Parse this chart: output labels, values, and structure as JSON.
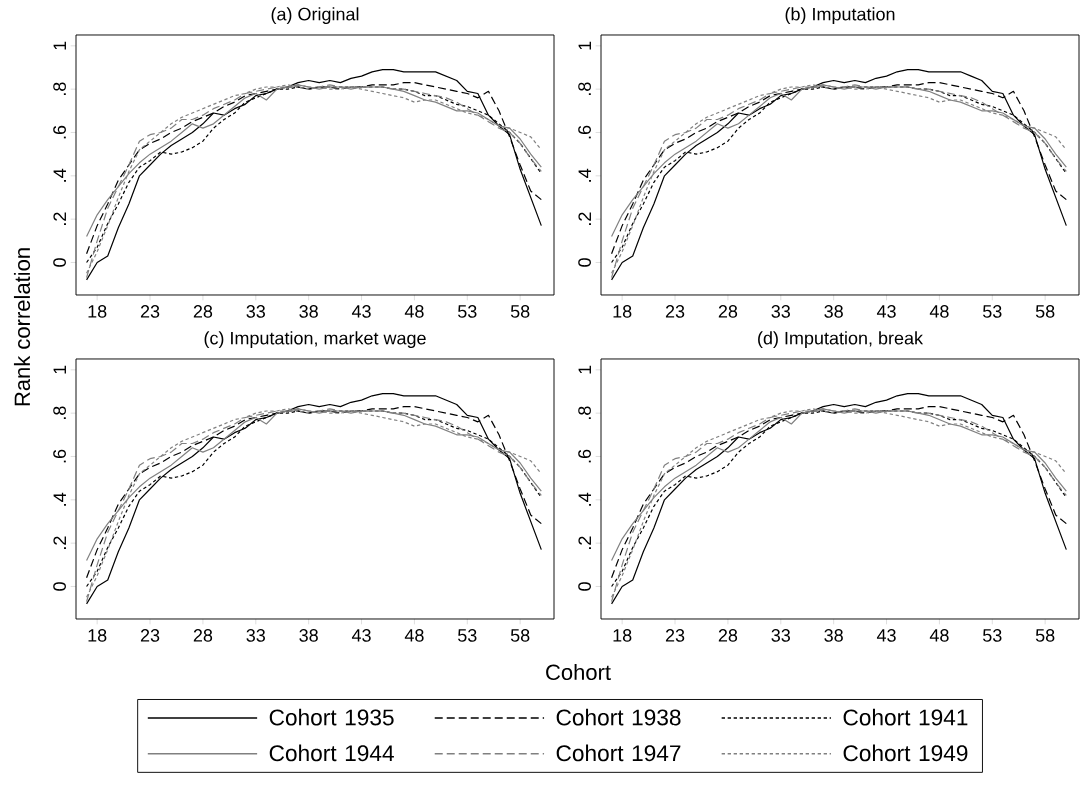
{
  "chart_data": [
    {
      "type": "line",
      "title": "(a) Original",
      "xlabel": "Cohort",
      "ylabel": "Rank correlation",
      "legend": "bottom",
      "marker": "none",
      "xlim": [
        16,
        61.2
      ],
      "ylim": [
        -0.15,
        1.05
      ],
      "xticks": [
        18,
        23,
        28,
        33,
        38,
        43,
        48,
        53,
        58
      ],
      "yticks": [
        0,
        {
          "value": 0.2,
          "label": ".2"
        },
        {
          "value": 0.4,
          "label": ".4"
        },
        {
          "value": 0.6,
          "label": ".6"
        },
        {
          "value": 0.8,
          "label": ".8"
        },
        1
      ],
      "x": [
        17,
        18,
        19,
        20,
        21,
        22,
        23,
        24,
        25,
        26,
        27,
        28,
        29,
        30,
        31,
        32,
        33,
        34,
        35,
        36,
        37,
        38,
        39,
        40,
        41,
        42,
        43,
        44,
        45,
        46,
        47,
        48,
        49,
        50,
        51,
        52,
        53,
        54,
        55,
        56,
        57,
        58,
        59,
        60
      ],
      "series": [
        {
          "name": "Cohort 1935",
          "color": "#000000",
          "line_style": "solid",
          "values": [
            -0.08,
            0.0,
            0.03,
            0.16,
            0.27,
            0.4,
            0.45,
            0.5,
            0.54,
            0.57,
            0.6,
            0.64,
            0.69,
            0.68,
            0.71,
            0.73,
            0.77,
            0.78,
            0.8,
            0.81,
            0.83,
            0.84,
            0.83,
            0.84,
            0.83,
            0.85,
            0.86,
            0.88,
            0.89,
            0.89,
            0.88,
            0.88,
            0.88,
            0.88,
            0.86,
            0.84,
            0.79,
            0.78,
            0.68,
            0.63,
            0.59,
            0.43,
            0.3,
            0.17
          ]
        },
        {
          "name": "Cohort 1938",
          "color": "#000000",
          "line_style": "dashed",
          "values": [
            0.04,
            0.17,
            0.27,
            0.38,
            0.45,
            0.52,
            0.55,
            0.57,
            0.6,
            0.62,
            0.65,
            0.67,
            0.69,
            0.72,
            0.74,
            0.77,
            0.78,
            0.79,
            0.8,
            0.81,
            0.81,
            0.8,
            0.81,
            0.81,
            0.8,
            0.81,
            0.81,
            0.82,
            0.82,
            0.82,
            0.83,
            0.83,
            0.82,
            0.81,
            0.8,
            0.79,
            0.78,
            0.76,
            0.79,
            0.7,
            0.58,
            0.45,
            0.33,
            0.29
          ]
        },
        {
          "name": "Cohort 1941",
          "color": "#000000",
          "line_style": "dotted",
          "values": [
            0.0,
            0.07,
            0.18,
            0.27,
            0.37,
            0.44,
            0.47,
            0.51,
            0.5,
            0.51,
            0.53,
            0.56,
            0.62,
            0.66,
            0.69,
            0.74,
            0.76,
            0.78,
            0.8,
            0.8,
            0.81,
            0.8,
            0.81,
            0.81,
            0.81,
            0.81,
            0.81,
            0.81,
            0.81,
            0.8,
            0.8,
            0.79,
            0.77,
            0.77,
            0.75,
            0.73,
            0.72,
            0.7,
            0.68,
            0.64,
            0.6,
            0.55,
            0.48,
            0.41
          ]
        },
        {
          "name": "Cohort 1944",
          "color": "#808080",
          "line_style": "solid",
          "values": [
            0.12,
            0.22,
            0.29,
            0.35,
            0.41,
            0.46,
            0.5,
            0.53,
            0.56,
            0.6,
            0.64,
            0.62,
            0.64,
            0.68,
            0.72,
            0.76,
            0.78,
            0.75,
            0.8,
            0.81,
            0.82,
            0.81,
            0.8,
            0.81,
            0.81,
            0.8,
            0.81,
            0.81,
            0.81,
            0.8,
            0.79,
            0.77,
            0.75,
            0.74,
            0.72,
            0.7,
            0.7,
            0.69,
            0.66,
            0.63,
            0.62,
            0.57,
            0.5,
            0.44
          ]
        },
        {
          "name": "Cohort 1947",
          "color": "#808080",
          "line_style": "dashed",
          "values": [
            -0.07,
            0.1,
            0.25,
            0.35,
            0.45,
            0.56,
            0.59,
            0.6,
            0.62,
            0.66,
            0.66,
            0.68,
            0.71,
            0.73,
            0.75,
            0.78,
            0.79,
            0.8,
            0.81,
            0.81,
            0.82,
            0.81,
            0.81,
            0.82,
            0.81,
            0.81,
            0.81,
            0.81,
            0.81,
            0.8,
            0.8,
            0.79,
            0.78,
            0.77,
            0.76,
            0.74,
            0.71,
            0.68,
            0.65,
            0.62,
            0.6,
            0.55,
            0.48,
            0.42
          ]
        },
        {
          "name": "Cohort 1949",
          "color": "#808080",
          "line_style": "dotted",
          "values": [
            -0.05,
            0.05,
            0.17,
            0.3,
            0.42,
            0.52,
            0.56,
            0.6,
            0.64,
            0.67,
            0.69,
            0.71,
            0.73,
            0.75,
            0.77,
            0.78,
            0.8,
            0.81,
            0.81,
            0.82,
            0.81,
            0.8,
            0.81,
            0.8,
            0.8,
            0.81,
            0.8,
            0.79,
            0.78,
            0.77,
            0.76,
            0.74,
            0.75,
            0.75,
            0.73,
            0.71,
            0.69,
            0.68,
            0.66,
            0.63,
            0.62,
            0.6,
            0.58,
            0.52
          ]
        }
      ]
    },
    {
      "type": "line",
      "title": "(b) Imputation",
      "marker": "none",
      "xlim": [
        16,
        61.2
      ],
      "ylim": [
        -0.15,
        1.05
      ],
      "xticks": [
        18,
        23,
        28,
        33,
        38,
        43,
        48,
        53,
        58
      ],
      "yticks": [
        0,
        {
          "value": 0.2,
          "label": ".2"
        },
        {
          "value": 0.4,
          "label": ".4"
        },
        {
          "value": 0.6,
          "label": ".6"
        },
        {
          "value": 0.8,
          "label": ".8"
        },
        1
      ],
      "x": [
        17,
        18,
        19,
        20,
        21,
        22,
        23,
        24,
        25,
        26,
        27,
        28,
        29,
        30,
        31,
        32,
        33,
        34,
        35,
        36,
        37,
        38,
        39,
        40,
        41,
        42,
        43,
        44,
        45,
        46,
        47,
        48,
        49,
        50,
        51,
        52,
        53,
        54,
        55,
        56,
        57,
        58,
        59,
        60
      ],
      "series": [
        {
          "color": "#000000",
          "line_style": "solid",
          "values": [
            -0.08,
            0.0,
            0.03,
            0.16,
            0.27,
            0.4,
            0.45,
            0.5,
            0.54,
            0.57,
            0.6,
            0.64,
            0.69,
            0.68,
            0.71,
            0.73,
            0.77,
            0.78,
            0.8,
            0.81,
            0.83,
            0.84,
            0.83,
            0.84,
            0.83,
            0.85,
            0.86,
            0.88,
            0.89,
            0.89,
            0.88,
            0.88,
            0.88,
            0.88,
            0.86,
            0.84,
            0.79,
            0.78,
            0.68,
            0.63,
            0.59,
            0.43,
            0.3,
            0.17
          ]
        },
        {
          "color": "#000000",
          "line_style": "dashed",
          "values": [
            0.04,
            0.17,
            0.27,
            0.38,
            0.45,
            0.52,
            0.55,
            0.57,
            0.6,
            0.62,
            0.65,
            0.67,
            0.69,
            0.72,
            0.74,
            0.77,
            0.78,
            0.79,
            0.8,
            0.81,
            0.81,
            0.8,
            0.81,
            0.81,
            0.8,
            0.81,
            0.81,
            0.82,
            0.82,
            0.82,
            0.83,
            0.83,
            0.82,
            0.81,
            0.8,
            0.79,
            0.78,
            0.76,
            0.79,
            0.7,
            0.58,
            0.45,
            0.33,
            0.29
          ]
        },
        {
          "color": "#000000",
          "line_style": "dotted",
          "values": [
            0.0,
            0.07,
            0.18,
            0.27,
            0.37,
            0.44,
            0.47,
            0.51,
            0.5,
            0.51,
            0.53,
            0.56,
            0.62,
            0.66,
            0.69,
            0.74,
            0.76,
            0.78,
            0.8,
            0.8,
            0.81,
            0.8,
            0.81,
            0.81,
            0.81,
            0.81,
            0.81,
            0.81,
            0.81,
            0.8,
            0.8,
            0.79,
            0.77,
            0.77,
            0.75,
            0.73,
            0.72,
            0.7,
            0.68,
            0.64,
            0.6,
            0.55,
            0.48,
            0.41
          ]
        },
        {
          "color": "#808080",
          "line_style": "solid",
          "values": [
            0.12,
            0.22,
            0.29,
            0.35,
            0.41,
            0.46,
            0.5,
            0.53,
            0.56,
            0.6,
            0.64,
            0.62,
            0.64,
            0.68,
            0.72,
            0.76,
            0.78,
            0.75,
            0.8,
            0.81,
            0.82,
            0.81,
            0.8,
            0.81,
            0.81,
            0.8,
            0.81,
            0.81,
            0.81,
            0.8,
            0.79,
            0.77,
            0.75,
            0.74,
            0.72,
            0.7,
            0.7,
            0.69,
            0.66,
            0.63,
            0.62,
            0.57,
            0.5,
            0.44
          ]
        },
        {
          "color": "#808080",
          "line_style": "dashed",
          "values": [
            -0.07,
            0.1,
            0.25,
            0.35,
            0.45,
            0.56,
            0.59,
            0.6,
            0.62,
            0.66,
            0.66,
            0.68,
            0.71,
            0.73,
            0.75,
            0.78,
            0.79,
            0.8,
            0.81,
            0.81,
            0.82,
            0.81,
            0.81,
            0.82,
            0.81,
            0.81,
            0.81,
            0.81,
            0.81,
            0.8,
            0.8,
            0.79,
            0.78,
            0.77,
            0.76,
            0.74,
            0.71,
            0.68,
            0.65,
            0.62,
            0.6,
            0.55,
            0.48,
            0.42
          ]
        },
        {
          "color": "#808080",
          "line_style": "dotted",
          "values": [
            -0.05,
            0.05,
            0.17,
            0.3,
            0.42,
            0.52,
            0.56,
            0.6,
            0.64,
            0.67,
            0.69,
            0.71,
            0.73,
            0.75,
            0.77,
            0.78,
            0.8,
            0.81,
            0.81,
            0.82,
            0.81,
            0.8,
            0.81,
            0.8,
            0.8,
            0.81,
            0.8,
            0.79,
            0.78,
            0.77,
            0.76,
            0.74,
            0.75,
            0.75,
            0.73,
            0.71,
            0.69,
            0.68,
            0.66,
            0.63,
            0.62,
            0.6,
            0.58,
            0.52
          ]
        }
      ]
    },
    {
      "type": "line",
      "title": "(c) Imputation, market wage",
      "marker": "none",
      "xlim": [
        16,
        61.2
      ],
      "ylim": [
        -0.15,
        1.05
      ],
      "xticks": [
        18,
        23,
        28,
        33,
        38,
        43,
        48,
        53,
        58
      ],
      "yticks": [
        0,
        {
          "value": 0.2,
          "label": ".2"
        },
        {
          "value": 0.4,
          "label": ".4"
        },
        {
          "value": 0.6,
          "label": ".6"
        },
        {
          "value": 0.8,
          "label": ".8"
        },
        1
      ],
      "x": [
        17,
        18,
        19,
        20,
        21,
        22,
        23,
        24,
        25,
        26,
        27,
        28,
        29,
        30,
        31,
        32,
        33,
        34,
        35,
        36,
        37,
        38,
        39,
        40,
        41,
        42,
        43,
        44,
        45,
        46,
        47,
        48,
        49,
        50,
        51,
        52,
        53,
        54,
        55,
        56,
        57,
        58,
        59,
        60
      ],
      "series": [
        {
          "color": "#000000",
          "line_style": "solid",
          "values": [
            -0.08,
            0.0,
            0.03,
            0.16,
            0.27,
            0.4,
            0.45,
            0.5,
            0.54,
            0.57,
            0.6,
            0.64,
            0.69,
            0.68,
            0.71,
            0.73,
            0.77,
            0.78,
            0.8,
            0.81,
            0.83,
            0.84,
            0.83,
            0.84,
            0.83,
            0.85,
            0.86,
            0.88,
            0.89,
            0.89,
            0.88,
            0.88,
            0.88,
            0.88,
            0.86,
            0.84,
            0.79,
            0.78,
            0.68,
            0.63,
            0.59,
            0.43,
            0.3,
            0.17
          ]
        },
        {
          "color": "#000000",
          "line_style": "dashed",
          "values": [
            0.04,
            0.17,
            0.27,
            0.38,
            0.45,
            0.52,
            0.55,
            0.57,
            0.6,
            0.62,
            0.65,
            0.67,
            0.69,
            0.72,
            0.74,
            0.77,
            0.78,
            0.79,
            0.8,
            0.81,
            0.81,
            0.8,
            0.81,
            0.81,
            0.8,
            0.81,
            0.81,
            0.82,
            0.82,
            0.82,
            0.83,
            0.83,
            0.82,
            0.81,
            0.8,
            0.79,
            0.78,
            0.76,
            0.79,
            0.7,
            0.58,
            0.45,
            0.33,
            0.29
          ]
        },
        {
          "color": "#000000",
          "line_style": "dotted",
          "values": [
            0.0,
            0.07,
            0.18,
            0.27,
            0.37,
            0.44,
            0.47,
            0.51,
            0.5,
            0.51,
            0.53,
            0.56,
            0.62,
            0.66,
            0.69,
            0.74,
            0.76,
            0.78,
            0.8,
            0.8,
            0.81,
            0.8,
            0.81,
            0.81,
            0.81,
            0.81,
            0.81,
            0.81,
            0.81,
            0.8,
            0.8,
            0.79,
            0.77,
            0.77,
            0.75,
            0.73,
            0.72,
            0.7,
            0.68,
            0.64,
            0.6,
            0.55,
            0.48,
            0.41
          ]
        },
        {
          "color": "#808080",
          "line_style": "solid",
          "values": [
            0.12,
            0.22,
            0.29,
            0.35,
            0.41,
            0.46,
            0.5,
            0.53,
            0.56,
            0.6,
            0.64,
            0.62,
            0.64,
            0.68,
            0.72,
            0.76,
            0.78,
            0.75,
            0.8,
            0.81,
            0.82,
            0.81,
            0.8,
            0.81,
            0.81,
            0.8,
            0.81,
            0.81,
            0.81,
            0.8,
            0.79,
            0.77,
            0.75,
            0.74,
            0.72,
            0.7,
            0.7,
            0.69,
            0.66,
            0.63,
            0.62,
            0.57,
            0.5,
            0.44
          ]
        },
        {
          "color": "#808080",
          "line_style": "dashed",
          "values": [
            -0.07,
            0.1,
            0.25,
            0.35,
            0.45,
            0.56,
            0.59,
            0.6,
            0.62,
            0.66,
            0.66,
            0.68,
            0.71,
            0.73,
            0.75,
            0.78,
            0.79,
            0.8,
            0.81,
            0.81,
            0.82,
            0.81,
            0.81,
            0.82,
            0.81,
            0.81,
            0.81,
            0.81,
            0.81,
            0.8,
            0.8,
            0.79,
            0.78,
            0.77,
            0.76,
            0.74,
            0.71,
            0.68,
            0.65,
            0.62,
            0.6,
            0.55,
            0.48,
            0.42
          ]
        },
        {
          "color": "#808080",
          "line_style": "dotted",
          "values": [
            -0.05,
            0.05,
            0.17,
            0.3,
            0.42,
            0.52,
            0.56,
            0.6,
            0.64,
            0.67,
            0.69,
            0.71,
            0.73,
            0.75,
            0.77,
            0.78,
            0.8,
            0.81,
            0.81,
            0.82,
            0.81,
            0.8,
            0.81,
            0.8,
            0.8,
            0.81,
            0.8,
            0.79,
            0.78,
            0.77,
            0.76,
            0.74,
            0.75,
            0.75,
            0.73,
            0.71,
            0.69,
            0.68,
            0.66,
            0.63,
            0.62,
            0.6,
            0.58,
            0.52
          ]
        }
      ]
    },
    {
      "type": "line",
      "title": "(d) Imputation, break",
      "marker": "none",
      "xlim": [
        16,
        61.2
      ],
      "ylim": [
        -0.15,
        1.05
      ],
      "xticks": [
        18,
        23,
        28,
        33,
        38,
        43,
        48,
        53,
        58
      ],
      "yticks": [
        0,
        {
          "value": 0.2,
          "label": ".2"
        },
        {
          "value": 0.4,
          "label": ".4"
        },
        {
          "value": 0.6,
          "label": ".6"
        },
        {
          "value": 0.8,
          "label": ".8"
        },
        1
      ],
      "x": [
        17,
        18,
        19,
        20,
        21,
        22,
        23,
        24,
        25,
        26,
        27,
        28,
        29,
        30,
        31,
        32,
        33,
        34,
        35,
        36,
        37,
        38,
        39,
        40,
        41,
        42,
        43,
        44,
        45,
        46,
        47,
        48,
        49,
        50,
        51,
        52,
        53,
        54,
        55,
        56,
        57,
        58,
        59,
        60
      ],
      "series": [
        {
          "color": "#000000",
          "line_style": "solid",
          "values": [
            -0.08,
            0.0,
            0.03,
            0.16,
            0.27,
            0.4,
            0.45,
            0.5,
            0.54,
            0.57,
            0.6,
            0.64,
            0.69,
            0.68,
            0.71,
            0.73,
            0.77,
            0.78,
            0.8,
            0.81,
            0.83,
            0.84,
            0.83,
            0.84,
            0.83,
            0.85,
            0.86,
            0.88,
            0.89,
            0.89,
            0.88,
            0.88,
            0.88,
            0.88,
            0.86,
            0.84,
            0.79,
            0.78,
            0.68,
            0.63,
            0.59,
            0.43,
            0.3,
            0.17
          ]
        },
        {
          "color": "#000000",
          "line_style": "dashed",
          "values": [
            0.04,
            0.17,
            0.27,
            0.38,
            0.45,
            0.52,
            0.55,
            0.57,
            0.6,
            0.62,
            0.65,
            0.67,
            0.69,
            0.72,
            0.74,
            0.77,
            0.78,
            0.79,
            0.8,
            0.81,
            0.81,
            0.8,
            0.81,
            0.81,
            0.8,
            0.81,
            0.81,
            0.82,
            0.82,
            0.82,
            0.83,
            0.83,
            0.82,
            0.81,
            0.8,
            0.79,
            0.78,
            0.76,
            0.79,
            0.7,
            0.58,
            0.45,
            0.33,
            0.29
          ]
        },
        {
          "color": "#000000",
          "line_style": "dotted",
          "values": [
            0.0,
            0.07,
            0.18,
            0.27,
            0.37,
            0.44,
            0.47,
            0.51,
            0.5,
            0.51,
            0.53,
            0.56,
            0.62,
            0.66,
            0.69,
            0.74,
            0.76,
            0.78,
            0.8,
            0.8,
            0.81,
            0.8,
            0.81,
            0.81,
            0.81,
            0.81,
            0.81,
            0.81,
            0.81,
            0.8,
            0.8,
            0.79,
            0.77,
            0.77,
            0.75,
            0.73,
            0.72,
            0.7,
            0.68,
            0.64,
            0.6,
            0.55,
            0.48,
            0.41
          ]
        },
        {
          "color": "#808080",
          "line_style": "solid",
          "values": [
            0.12,
            0.22,
            0.29,
            0.35,
            0.41,
            0.46,
            0.5,
            0.53,
            0.56,
            0.6,
            0.64,
            0.62,
            0.64,
            0.68,
            0.72,
            0.76,
            0.78,
            0.75,
            0.8,
            0.81,
            0.82,
            0.81,
            0.8,
            0.81,
            0.81,
            0.8,
            0.81,
            0.81,
            0.81,
            0.8,
            0.79,
            0.77,
            0.75,
            0.74,
            0.72,
            0.7,
            0.7,
            0.69,
            0.66,
            0.63,
            0.62,
            0.57,
            0.5,
            0.44
          ]
        },
        {
          "color": "#808080",
          "line_style": "dashed",
          "values": [
            -0.07,
            0.1,
            0.25,
            0.35,
            0.45,
            0.56,
            0.59,
            0.6,
            0.62,
            0.66,
            0.66,
            0.68,
            0.71,
            0.73,
            0.75,
            0.78,
            0.79,
            0.8,
            0.81,
            0.81,
            0.82,
            0.81,
            0.81,
            0.82,
            0.81,
            0.81,
            0.81,
            0.81,
            0.81,
            0.8,
            0.8,
            0.79,
            0.78,
            0.77,
            0.76,
            0.74,
            0.71,
            0.68,
            0.65,
            0.62,
            0.6,
            0.55,
            0.48,
            0.42
          ]
        },
        {
          "color": "#808080",
          "line_style": "dotted",
          "values": [
            -0.05,
            0.05,
            0.17,
            0.3,
            0.42,
            0.52,
            0.56,
            0.6,
            0.64,
            0.67,
            0.69,
            0.71,
            0.73,
            0.75,
            0.77,
            0.78,
            0.8,
            0.81,
            0.81,
            0.82,
            0.81,
            0.8,
            0.81,
            0.8,
            0.8,
            0.81,
            0.8,
            0.79,
            0.78,
            0.77,
            0.76,
            0.74,
            0.75,
            0.75,
            0.73,
            0.71,
            0.69,
            0.68,
            0.66,
            0.63,
            0.62,
            0.6,
            0.58,
            0.52
          ]
        }
      ]
    }
  ]
}
